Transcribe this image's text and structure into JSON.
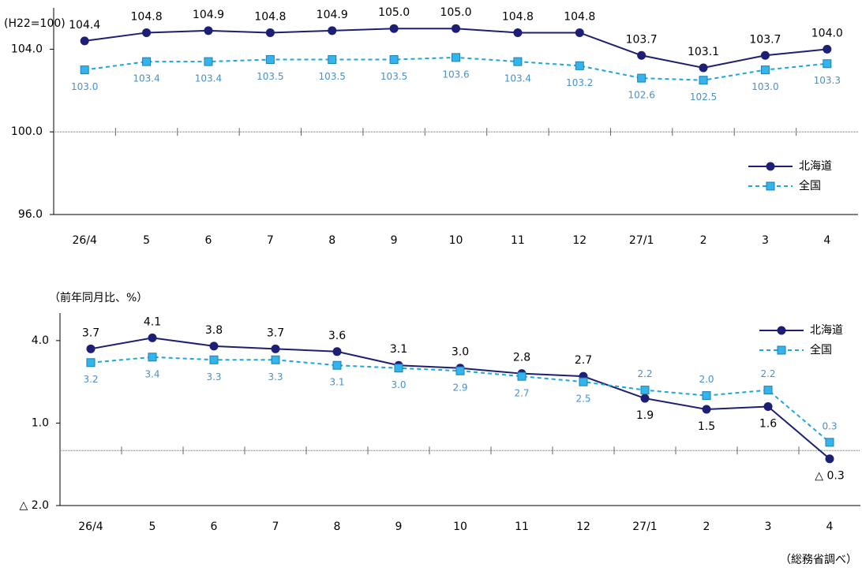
{
  "chart_data": [
    {
      "type": "line",
      "y_label": "(H22=100)",
      "categories": [
        "26/4",
        "5",
        "6",
        "7",
        "8",
        "9",
        "10",
        "11",
        "12",
        "27/1",
        "2",
        "3",
        "4"
      ],
      "series": [
        {
          "name": "北海道",
          "color": "#1c1f73",
          "values": [
            104.4,
            104.8,
            104.9,
            104.8,
            104.9,
            105.0,
            105.0,
            104.8,
            104.8,
            103.7,
            103.1,
            103.7,
            104.0
          ],
          "value_labels": [
            "104.4",
            "104.8",
            "104.9",
            "104.8",
            "104.9",
            "105.0",
            "105.0",
            "104.8",
            "104.8",
            "103.7",
            "103.1",
            "103.7",
            "104.0"
          ]
        },
        {
          "name": "全国",
          "color": "#1ba6e0",
          "values": [
            103.0,
            103.4,
            103.4,
            103.5,
            103.5,
            103.5,
            103.6,
            103.4,
            103.2,
            102.6,
            102.5,
            103.0,
            103.3
          ],
          "value_labels": [
            "103.0",
            "103.4",
            "103.4",
            "103.5",
            "103.5",
            "103.5",
            "103.6",
            "103.4",
            "103.2",
            "102.6",
            "102.5",
            "103.0",
            "103.3"
          ]
        }
      ],
      "ylim": [
        96,
        106
      ],
      "yticks": [
        {
          "value": 96,
          "label": "96.0"
        },
        {
          "value": 100,
          "label": "100.0"
        },
        {
          "value": 104,
          "label": "104.0"
        }
      ],
      "baseline": 100,
      "legend": "right"
    },
    {
      "type": "line",
      "y_label": "（前年同月比、%）",
      "categories": [
        "26/4",
        "5",
        "6",
        "7",
        "8",
        "9",
        "10",
        "11",
        "12",
        "27/1",
        "2",
        "3",
        "4"
      ],
      "series": [
        {
          "name": "北海道",
          "color": "#1c1f73",
          "values": [
            3.7,
            4.1,
            3.8,
            3.7,
            3.6,
            3.1,
            3.0,
            2.8,
            2.7,
            1.9,
            1.5,
            1.6,
            -0.3
          ],
          "value_labels": [
            "3.7",
            "4.1",
            "3.8",
            "3.7",
            "3.6",
            "3.1",
            "3.0",
            "2.8",
            "2.7",
            "1.9",
            "1.5",
            "1.6",
            "△ 0.3"
          ]
        },
        {
          "name": "全国",
          "color": "#1ba6e0",
          "values": [
            3.2,
            3.4,
            3.3,
            3.3,
            3.1,
            3.0,
            2.9,
            2.7,
            2.5,
            2.2,
            2.0,
            2.2,
            0.3
          ],
          "value_labels": [
            "3.2",
            "3.4",
            "3.3",
            "3.3",
            "3.1",
            "3.0",
            "2.9",
            "2.7",
            "2.5",
            "2.2",
            "2.0",
            "2.2",
            "0.3"
          ]
        }
      ],
      "ylim": [
        -2,
        5
      ],
      "yticks": [
        {
          "value": -2,
          "label": "△ 2.0"
        },
        {
          "value": 1,
          "label": "1.0"
        },
        {
          "value": 4,
          "label": "4.0"
        }
      ],
      "baseline": 0,
      "legend": "upper right"
    }
  ],
  "footer": "（総務省調べ）"
}
